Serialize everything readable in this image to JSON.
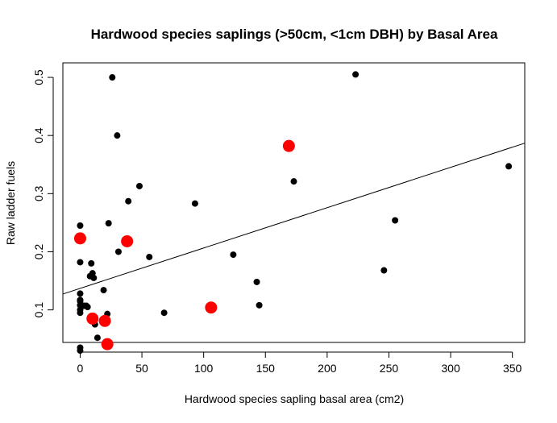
{
  "chart_data": {
    "type": "scatter",
    "title": "Hardwood species saplings (>50cm, <1cm DBH) by Basal Area",
    "xlabel": "Hardwood species sapling basal area (cm2)",
    "ylabel": "Raw ladder fuels",
    "xlim": [
      -14,
      360
    ],
    "ylim": [
      0.044,
      0.525
    ],
    "x_ticks": [
      0,
      50,
      100,
      150,
      200,
      250,
      300,
      350
    ],
    "y_ticks": [
      0.1,
      0.2,
      0.3,
      0.4,
      0.5
    ],
    "x_tick_labels": [
      "0",
      "50",
      "100",
      "150",
      "200",
      "250",
      "300",
      "350"
    ],
    "y_tick_labels": [
      "0.1",
      "0.2",
      "0.3",
      "0.4",
      "0.5"
    ],
    "grid": false,
    "colors": {
      "black_points": "#000000",
      "red_points": "#ff0000",
      "line": "#000000"
    },
    "series": [
      {
        "color": "#000000",
        "points": [
          {
            "x": 0,
            "y": 0.035
          },
          {
            "x": 0,
            "y": 0.03
          },
          {
            "x": 0,
            "y": 0.095
          },
          {
            "x": 0,
            "y": 0.1
          },
          {
            "x": 0,
            "y": 0.108
          },
          {
            "x": 0,
            "y": 0.115
          },
          {
            "x": 0,
            "y": 0.117
          },
          {
            "x": 0,
            "y": 0.128
          },
          {
            "x": 0,
            "y": 0.182
          },
          {
            "x": 0,
            "y": 0.245
          },
          {
            "x": 3,
            "y": 0.107
          },
          {
            "x": 5,
            "y": 0.107
          },
          {
            "x": 6,
            "y": 0.105
          },
          {
            "x": 8,
            "y": 0.158
          },
          {
            "x": 9,
            "y": 0.18
          },
          {
            "x": 10,
            "y": 0.163
          },
          {
            "x": 11,
            "y": 0.155
          },
          {
            "x": 12,
            "y": 0.075
          },
          {
            "x": 14,
            "y": 0.052
          },
          {
            "x": 19,
            "y": 0.134
          },
          {
            "x": 22,
            "y": 0.093
          },
          {
            "x": 23,
            "y": 0.249
          },
          {
            "x": 26,
            "y": 0.5
          },
          {
            "x": 30,
            "y": 0.4
          },
          {
            "x": 31,
            "y": 0.2
          },
          {
            "x": 39,
            "y": 0.287
          },
          {
            "x": 48,
            "y": 0.313
          },
          {
            "x": 56,
            "y": 0.191
          },
          {
            "x": 68,
            "y": 0.095
          },
          {
            "x": 93,
            "y": 0.283
          },
          {
            "x": 124,
            "y": 0.195
          },
          {
            "x": 143,
            "y": 0.148
          },
          {
            "x": 145,
            "y": 0.108
          },
          {
            "x": 173,
            "y": 0.321
          },
          {
            "x": 223,
            "y": 0.505
          },
          {
            "x": 246,
            "y": 0.168
          },
          {
            "x": 255,
            "y": 0.254
          },
          {
            "x": 347,
            "y": 0.347
          }
        ]
      },
      {
        "color": "#ff0000",
        "points": [
          {
            "x": 0,
            "y": 0.223
          },
          {
            "x": 10,
            "y": 0.085
          },
          {
            "x": 20,
            "y": 0.081
          },
          {
            "x": 22,
            "y": 0.041
          },
          {
            "x": 38,
            "y": 0.218
          },
          {
            "x": 106,
            "y": 0.104
          },
          {
            "x": 169,
            "y": 0.382
          }
        ]
      }
    ],
    "regression_line": {
      "intercept": 0.137,
      "slope": 0.000694
    }
  }
}
